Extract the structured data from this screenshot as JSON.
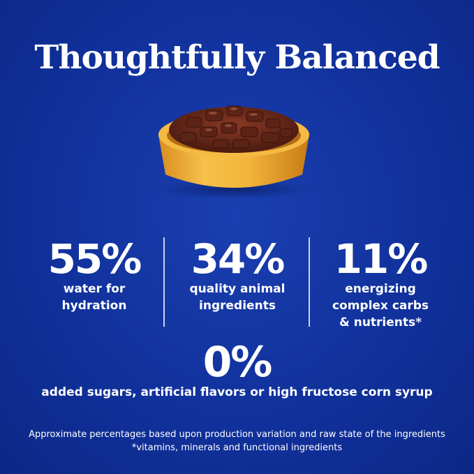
{
  "title": "Thoughtfully Balanced",
  "image": {
    "subject": "bowl-of-food"
  },
  "stats": [
    {
      "value": "55%",
      "desc_lines": [
        "water for",
        "hydration"
      ]
    },
    {
      "value": "34%",
      "desc_lines": [
        "quality animal",
        "ingredients"
      ]
    },
    {
      "value": "11%",
      "desc_lines": [
        "energizing",
        "complex carbs",
        "& nutrients*"
      ]
    }
  ],
  "zero": {
    "value": "0%",
    "desc": "added sugars, artificial flavors or high fructose corn syrup"
  },
  "footnotes": [
    "Approximate percentages based upon production variation and raw state of the ingredients",
    "*vitamins, minerals and functional ingredients"
  ],
  "colors": {
    "background": "#10309a",
    "text": "#ffffff",
    "bowl": "#f0b43a",
    "food": "#6b2a1c"
  }
}
